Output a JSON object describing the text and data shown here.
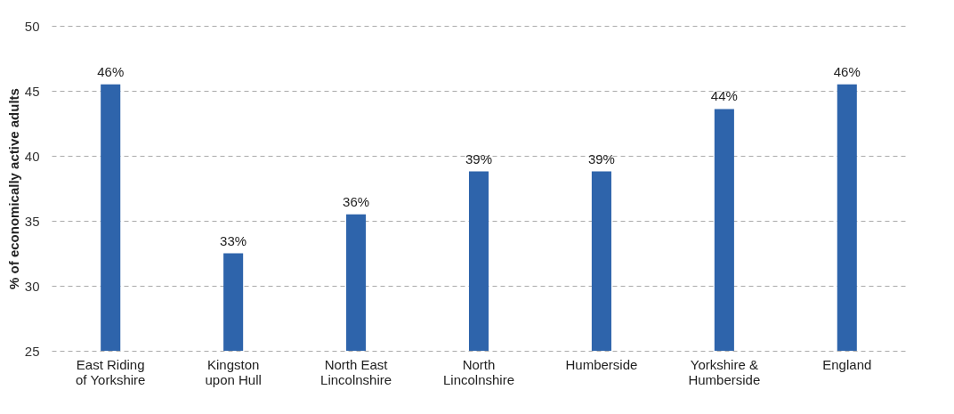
{
  "chart_data": {
    "type": "bar",
    "ylabel": "% of economically active adults",
    "categories": [
      "East Riding of Yorkshire",
      "Kingston upon Hull",
      "North East Lincolnshire",
      "North Lincolnshire",
      "Humberside",
      "Yorkshire & Humberside",
      "England"
    ],
    "values": [
      45.5,
      32.5,
      35.5,
      38.8,
      38.8,
      43.6,
      45.5
    ],
    "value_labels": [
      "46%",
      "33%",
      "36%",
      "39%",
      "39%",
      "44%",
      "46%"
    ],
    "color": "#2e64ab",
    "ylim": [
      25,
      50
    ],
    "yticks": [
      25,
      30,
      35,
      40,
      45,
      50
    ],
    "grid": "y"
  }
}
